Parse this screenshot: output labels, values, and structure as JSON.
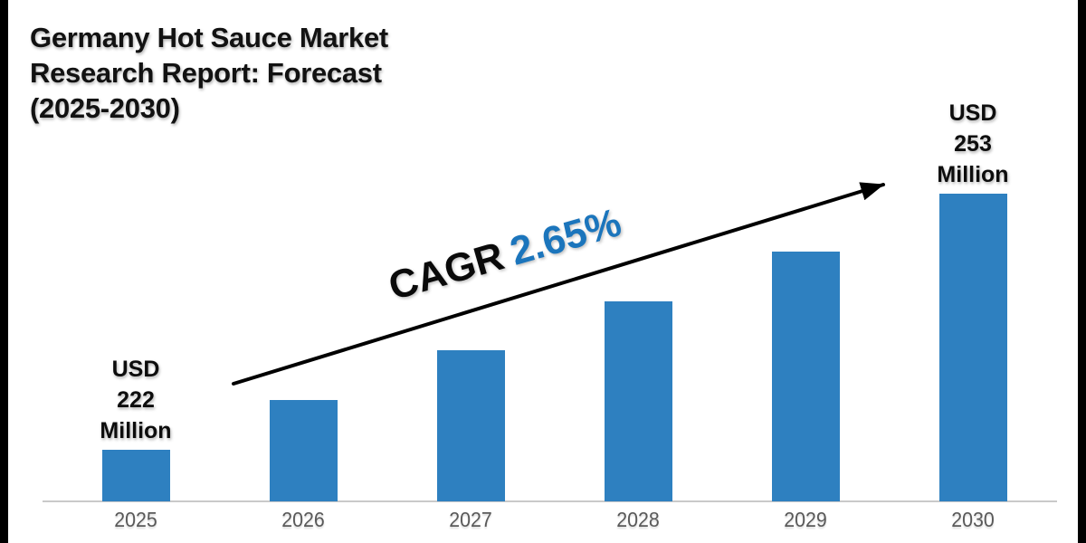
{
  "title_lines": [
    "Germany Hot Sauce Market",
    "Research Report: Forecast",
    "(2025-2030)"
  ],
  "chart_data": {
    "type": "bar",
    "title": "Germany Hot Sauce Market Research Report: Forecast (2025-2030)",
    "categories": [
      "2025",
      "2026",
      "2027",
      "2028",
      "2029",
      "2030"
    ],
    "values": [
      222,
      228,
      234,
      240,
      246,
      253
    ],
    "unit": "USD Million",
    "value_labels": [
      {
        "category": "2025",
        "text": "USD 222 Million"
      },
      {
        "category": "2030",
        "text": "USD 253 Million"
      }
    ],
    "annotation": {
      "prefix": "CAGR",
      "value": "2.65%"
    },
    "xlabel": "",
    "ylabel": "",
    "legend": "none",
    "grid": false,
    "style": {
      "bar_color": "#2E80C0",
      "annotation_prefix_color": "#0A0A0A",
      "annotation_value_color": "#1B75BC",
      "axis_line_color": "#C9C9C9",
      "tick_label_color": "#595959",
      "title_color": "#121212",
      "background_color": "#FFFFFF",
      "frame_bar_color": "#000000",
      "arrow_color": "#000000"
    }
  }
}
